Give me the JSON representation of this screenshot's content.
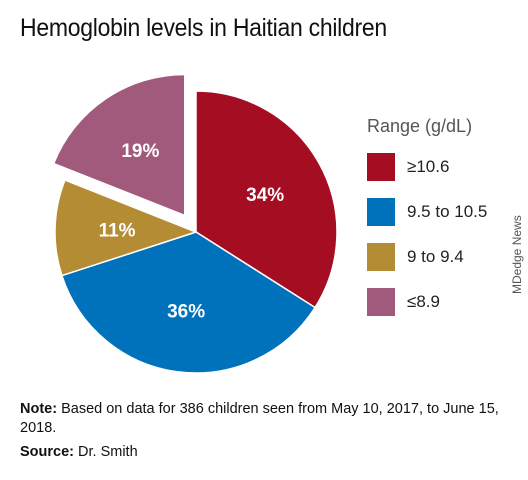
{
  "title": "Hemoglobin levels in Haitian children",
  "chart_data": {
    "type": "pie",
    "title": "Hemoglobin levels in Haitian children",
    "slices": [
      {
        "label": "≥10.6",
        "value": 34,
        "display": "34%",
        "color": "#a50d22",
        "exploded": false
      },
      {
        "label": "9.5 to 10.5",
        "value": 36,
        "display": "36%",
        "color": "#0072bc",
        "exploded": false
      },
      {
        "label": "9 to 9.4",
        "value": 11,
        "display": "11%",
        "color": "#b48c34",
        "exploded": false
      },
      {
        "label": "≤8.9",
        "value": 19,
        "display": "19%",
        "color": "#a25a7c",
        "exploded": true
      }
    ],
    "legend_title": "Range (g/dL)",
    "legend_position": "right"
  },
  "note": {
    "label": "Note:",
    "text": "Based on data for 386 children seen from May 10, 2017, to June 15, 2018."
  },
  "source": {
    "label": "Source:",
    "text": "Dr. Smith"
  },
  "watermark": "MDedge News"
}
